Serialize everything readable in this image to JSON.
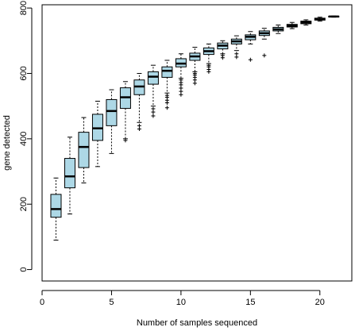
{
  "chart_data": {
    "type": "boxplot",
    "xlabel": "Number of samples sequenced",
    "ylabel": "gene detected",
    "xlim": [
      0,
      22.3
    ],
    "ylim": [
      -35,
      810
    ],
    "x_ticks": [
      0,
      5,
      10,
      15,
      20
    ],
    "y_ticks": [
      0,
      200,
      400,
      600,
      800
    ],
    "grid": false,
    "legend": "none",
    "box_fill": "#add8e6",
    "box_stroke": "#000000",
    "boxes": [
      {
        "x": 1,
        "whisker_low": 90,
        "q1": 160,
        "median": 185,
        "q3": 230,
        "whisker_high": 280,
        "outliers": []
      },
      {
        "x": 2,
        "whisker_low": 170,
        "q1": 250,
        "median": 285,
        "q3": 340,
        "whisker_high": 405,
        "outliers": []
      },
      {
        "x": 3,
        "whisker_low": 265,
        "q1": 312,
        "median": 375,
        "q3": 420,
        "whisker_high": 465,
        "outliers": []
      },
      {
        "x": 4,
        "whisker_low": 315,
        "q1": 395,
        "median": 432,
        "q3": 475,
        "whisker_high": 515,
        "outliers": []
      },
      {
        "x": 5,
        "whisker_low": 355,
        "q1": 440,
        "median": 485,
        "q3": 520,
        "whisker_high": 550,
        "outliers": []
      },
      {
        "x": 6,
        "whisker_low": 400,
        "q1": 493,
        "median": 527,
        "q3": 556,
        "whisker_high": 575,
        "outliers": [
          395
        ]
      },
      {
        "x": 7,
        "whisker_low": 450,
        "q1": 535,
        "median": 560,
        "q3": 580,
        "whisker_high": 600,
        "outliers": [
          440,
          430
        ]
      },
      {
        "x": 8,
        "whisker_low": 500,
        "q1": 567,
        "median": 590,
        "q3": 605,
        "whisker_high": 625,
        "outliers": [
          492,
          482,
          470
        ]
      },
      {
        "x": 9,
        "whisker_low": 540,
        "q1": 588,
        "median": 608,
        "q3": 620,
        "whisker_high": 640,
        "outliers": [
          533,
          527,
          518,
          510,
          495
        ]
      },
      {
        "x": 10,
        "whisker_low": 585,
        "q1": 620,
        "median": 630,
        "q3": 645,
        "whisker_high": 660,
        "outliers": [
          580,
          572,
          565,
          555,
          545,
          535
        ]
      },
      {
        "x": 11,
        "whisker_low": 605,
        "q1": 640,
        "median": 652,
        "q3": 662,
        "whisker_high": 680,
        "outliers": [
          600,
          595,
          588,
          580,
          570
        ]
      },
      {
        "x": 12,
        "whisker_low": 630,
        "q1": 658,
        "median": 668,
        "q3": 678,
        "whisker_high": 690,
        "outliers": [
          625,
          620,
          612,
          605
        ]
      },
      {
        "x": 13,
        "whisker_low": 660,
        "q1": 675,
        "median": 685,
        "q3": 693,
        "whisker_high": 700,
        "outliers": [
          655,
          648
        ]
      },
      {
        "x": 14,
        "whisker_low": 670,
        "q1": 690,
        "median": 698,
        "q3": 705,
        "whisker_high": 715,
        "outliers": [
          660,
          650
        ]
      },
      {
        "x": 15,
        "whisker_low": 690,
        "q1": 703,
        "median": 712,
        "q3": 718,
        "whisker_high": 728,
        "outliers": [
          642
        ]
      },
      {
        "x": 16,
        "whisker_low": 705,
        "q1": 716,
        "median": 723,
        "q3": 730,
        "whisker_high": 738,
        "outliers": [
          655
        ]
      },
      {
        "x": 17,
        "whisker_low": 722,
        "q1": 730,
        "median": 735,
        "q3": 741,
        "whisker_high": 748,
        "outliers": []
      },
      {
        "x": 18,
        "whisker_low": 737,
        "q1": 742,
        "median": 746,
        "q3": 750,
        "whisker_high": 756,
        "outliers": []
      },
      {
        "x": 19,
        "whisker_low": 748,
        "q1": 752,
        "median": 756,
        "q3": 760,
        "whisker_high": 764,
        "outliers": []
      },
      {
        "x": 20,
        "whisker_low": 760,
        "q1": 763,
        "median": 766,
        "q3": 769,
        "whisker_high": 772,
        "outliers": []
      },
      {
        "x": 21,
        "whisker_low": 772,
        "q1": 773,
        "median": 774,
        "q3": 775,
        "whisker_high": 776,
        "outliers": []
      }
    ]
  }
}
